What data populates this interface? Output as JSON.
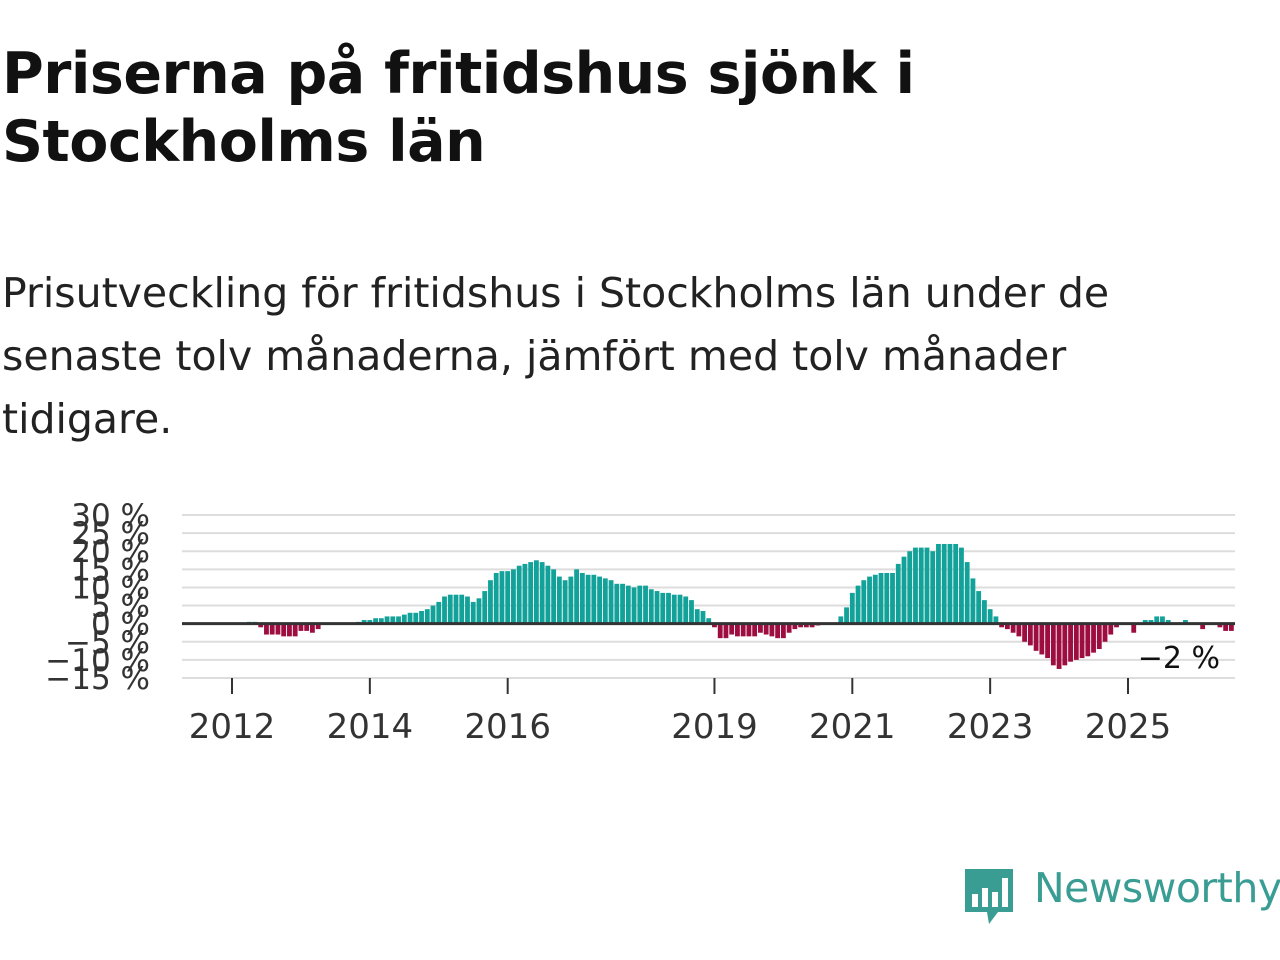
{
  "title": "Priserna på fritidshus sjönk i Stockholms län",
  "subtitle": "Prisutveckling för fritidshus i Stockholms län under de senaste tolv månaderna, jämfört med tolv månader tidigare.",
  "brand": {
    "name": "Newsworthy",
    "color": "#3a9d94",
    "icon": "newsworthy-bar-chart-logo-icon"
  },
  "colors": {
    "positive": "#13a29a",
    "negative": "#9e0d3f",
    "grid": "#dddddd",
    "zero": "#333333"
  },
  "chart_data": {
    "type": "bar",
    "title": "Priserna på fritidshus sjönk i Stockholms län",
    "ylabel": "",
    "xlabel": "",
    "unit": "%",
    "ylim": [
      -15,
      30
    ],
    "yticks": [
      30,
      25,
      20,
      15,
      10,
      5,
      0,
      -5,
      -10,
      -15
    ],
    "ytick_labels": [
      "30 %",
      "25 %",
      "20 %",
      "15 %",
      "10 %",
      "5 %",
      "0 %",
      "−5 %",
      "−10 %",
      "−15 %"
    ],
    "xticks": [
      2012,
      2014,
      2016,
      2019,
      2021,
      2023,
      2025
    ],
    "xtick_labels": [
      "2012",
      "2014",
      "2016",
      "2019",
      "2021",
      "2023",
      "2025"
    ],
    "start": "2011-01",
    "frequency": "monthly",
    "end_label": "−2 %",
    "values": [
      0,
      0,
      0,
      0,
      0,
      0,
      0,
      0,
      0,
      0,
      0,
      0,
      0,
      0,
      0,
      0.5,
      0.5,
      -1,
      -3,
      -3,
      -3,
      -3.5,
      -3.5,
      -3.5,
      -2,
      -2,
      -2.5,
      -1.5,
      0,
      0,
      0,
      0,
      0,
      0,
      0.5,
      1,
      1,
      1.5,
      1.5,
      2,
      2,
      2,
      2.5,
      3,
      3,
      3.5,
      4,
      5,
      6,
      7.5,
      8,
      8,
      8,
      7.5,
      6,
      7,
      9,
      12,
      14,
      14.5,
      14.5,
      15,
      16,
      16.5,
      17,
      17.5,
      17,
      16,
      15,
      13,
      12,
      13,
      15,
      14,
      13.5,
      13.5,
      13,
      12.5,
      12,
      11,
      11,
      10.5,
      10,
      10.5,
      10.5,
      9.5,
      9,
      8.5,
      8.5,
      8,
      8,
      7.5,
      6.5,
      4,
      3.5,
      1.5,
      -1,
      -4,
      -4,
      -3,
      -3.5,
      -3.5,
      -3.5,
      -3.5,
      -2.5,
      -3,
      -3.5,
      -4,
      -4,
      -2.5,
      -1.5,
      -1,
      -1,
      -1,
      -0.5,
      0,
      0,
      0,
      2,
      4.5,
      8.5,
      10.5,
      12,
      13,
      13.5,
      14,
      14,
      14,
      16.5,
      18.5,
      20,
      21,
      21,
      21,
      20,
      22,
      22,
      22,
      22,
      21,
      17,
      12.5,
      9,
      6.5,
      4,
      2,
      -1,
      -1.5,
      -2.5,
      -3.5,
      -5,
      -6,
      -7.5,
      -8.5,
      -9.5,
      -11.5,
      -12.5,
      -11.5,
      -10.5,
      -10,
      -9.5,
      -9,
      -8,
      -7,
      -5,
      -3,
      -1,
      0,
      0,
      -2.5,
      0,
      1,
      1,
      2,
      2,
      1,
      0,
      0,
      1,
      0,
      0,
      -1.5,
      0,
      0,
      -1,
      -2,
      -2
    ]
  }
}
